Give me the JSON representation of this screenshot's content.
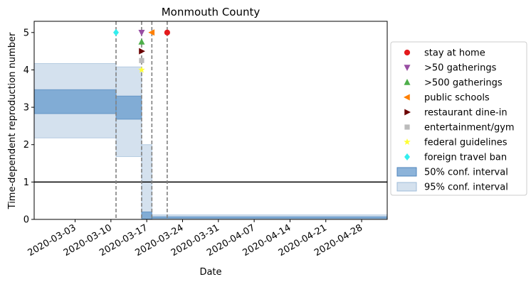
{
  "chart_data": {
    "type": "area",
    "title": "Monmouth County",
    "xlabel": "Date",
    "ylabel": "Time-dependent reproduction number",
    "xlim": [
      "2020-02-24",
      "2020-05-03"
    ],
    "ylim": [
      0,
      5.3
    ],
    "x_ticks": [
      "2020-03-03",
      "2020-03-10",
      "2020-03-17",
      "2020-03-24",
      "2020-03-31",
      "2020-04-07",
      "2020-04-14",
      "2020-04-21",
      "2020-04-28"
    ],
    "y_ticks": [
      "0",
      "1",
      "2",
      "3",
      "4",
      "5"
    ],
    "reference_line": 1,
    "grid": false,
    "legend_position": "outside right",
    "confidence_bands": [
      {
        "name": "50% conf. interval",
        "color": "#6699cc",
        "opacity": 0.75,
        "segments": [
          {
            "start": "2020-02-24",
            "end": "2020-03-11",
            "low": 2.83,
            "high": 3.47
          },
          {
            "start": "2020-03-11",
            "end": "2020-03-16",
            "low": 2.68,
            "high": 3.3
          },
          {
            "start": "2020-03-16",
            "end": "2020-03-18",
            "low": 0.0,
            "high": 0.2
          },
          {
            "start": "2020-03-18",
            "end": "2020-05-03",
            "low": 0.03,
            "high": 0.07
          }
        ]
      },
      {
        "name": "95% conf. interval",
        "color": "#a9c4de",
        "opacity": 0.5,
        "segments": [
          {
            "start": "2020-02-24",
            "end": "2020-03-11",
            "low": 2.18,
            "high": 4.17
          },
          {
            "start": "2020-03-11",
            "end": "2020-03-16",
            "low": 1.68,
            "high": 4.08
          },
          {
            "start": "2020-03-16",
            "end": "2020-03-18",
            "low": 0.0,
            "high": 2.0
          },
          {
            "start": "2020-03-18",
            "end": "2020-05-03",
            "low": 0.0,
            "high": 0.12
          }
        ]
      }
    ],
    "intervention_lines": [
      "2020-03-11",
      "2020-03-16",
      "2020-03-18",
      "2020-03-21"
    ],
    "events": [
      {
        "name": "stay at home",
        "date": "2020-03-21",
        "y": 5.0,
        "marker": "circle",
        "color": "#e41a1c"
      },
      {
        "name": ">50 gatherings",
        "date": "2020-03-16",
        "y": 5.0,
        "marker": "triangle-down",
        "color": "#984ea3"
      },
      {
        "name": ">500 gatherings",
        "date": "2020-03-16",
        "y": 4.75,
        "marker": "triangle-up",
        "color": "#4daf4a"
      },
      {
        "name": "public schools",
        "date": "2020-03-18",
        "y": 5.0,
        "marker": "triangle-left",
        "color": "#ff7f00"
      },
      {
        "name": "restaurant dine-in",
        "date": "2020-03-16",
        "y": 4.5,
        "marker": "triangle-right",
        "color": "#6b0000"
      },
      {
        "name": "entertainment/gym",
        "date": "2020-03-16",
        "y": 4.25,
        "marker": "square",
        "color": "#bbbbbb"
      },
      {
        "name": "federal guidelines",
        "date": "2020-03-16",
        "y": 4.0,
        "marker": "star",
        "color": "#ffff33"
      },
      {
        "name": "foreign travel ban",
        "date": "2020-03-11",
        "y": 5.0,
        "marker": "diamond",
        "color": "#33eeee"
      }
    ]
  }
}
